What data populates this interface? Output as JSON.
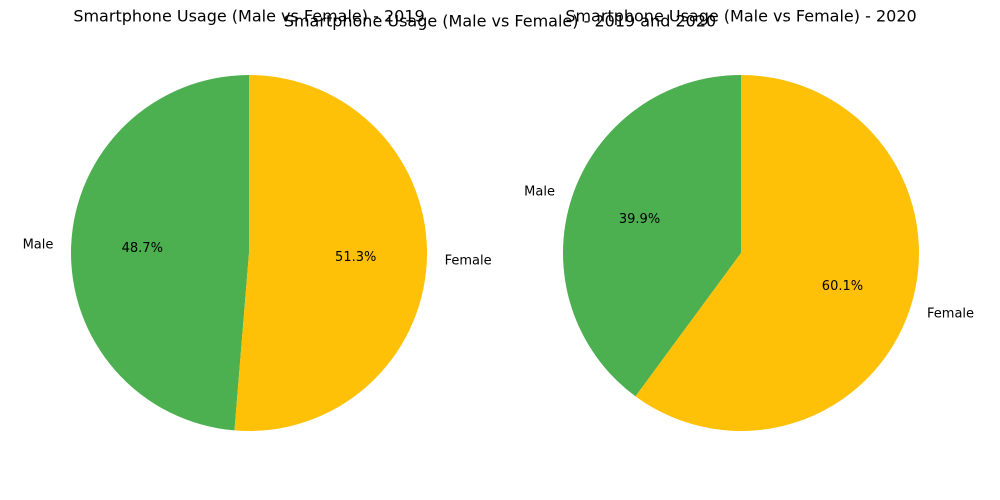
{
  "figure": {
    "suptitle": "Smartphone Usage (Male vs Female) - 2019 and 2020"
  },
  "chart_data": [
    {
      "type": "pie",
      "title": "Smartphone Usage (Male vs Female) - 2019",
      "labels": [
        "Male",
        "Female"
      ],
      "values": [
        48.7,
        51.3
      ],
      "percent_labels": [
        "48.7%",
        "51.3%"
      ],
      "colors": [
        "#4caf50",
        "#ffc107"
      ],
      "start_angle_deg": 90,
      "counterclockwise": true
    },
    {
      "type": "pie",
      "title": "Smartphone Usage (Male vs Female) - 2020",
      "labels": [
        "Male",
        "Female"
      ],
      "values": [
        39.9,
        60.1
      ],
      "percent_labels": [
        "39.9%",
        "60.1%"
      ],
      "colors": [
        "#4caf50",
        "#ffc107"
      ],
      "start_angle_deg": 90,
      "counterclockwise": true
    }
  ]
}
